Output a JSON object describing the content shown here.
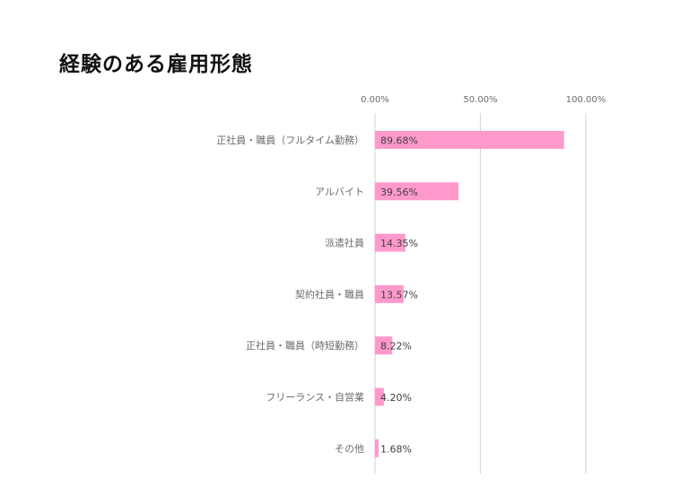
{
  "chart_data": {
    "type": "bar",
    "orientation": "horizontal",
    "title": "経験のある雇用形態",
    "categories": [
      "正社員・職員（フルタイム勤務）",
      "アルバイト",
      "派遣社員",
      "契約社員・職員",
      "正社員・職員（時短勤務）",
      "フリーランス・自営業",
      "その他"
    ],
    "values": [
      89.68,
      39.56,
      14.35,
      13.57,
      8.22,
      4.2,
      1.68
    ],
    "data_labels": [
      "89.68%",
      "39.56%",
      "14.35%",
      "13.57%",
      "8.22%",
      "4.20%",
      "1.68%"
    ],
    "xlim": [
      0,
      100
    ],
    "x_ticks": [
      0,
      50,
      100
    ],
    "x_tick_labels": [
      "0.00%",
      "50.00%",
      "100.00%"
    ],
    "axis_position": "top",
    "grid": true,
    "legend": "none",
    "bar_color": "#ff99cc",
    "grid_color": "#d9d9d9"
  }
}
